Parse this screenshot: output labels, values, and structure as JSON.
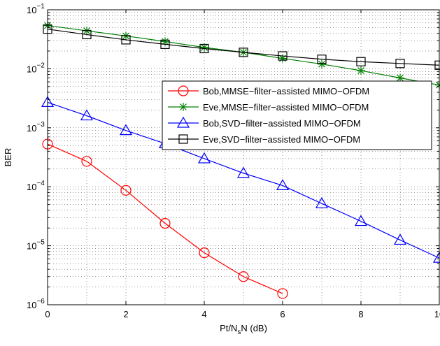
{
  "chart_data": {
    "type": "line",
    "title": "",
    "xlabel": {
      "main": "Pt/N",
      "sub": "s",
      "tail": "N (dB)"
    },
    "ylabel": "BER",
    "xlim": [
      0,
      10
    ],
    "ylim": [
      1e-06,
      0.1
    ],
    "yscale": "log",
    "grid": true,
    "legend_position": "right",
    "x_ticks": [
      "0",
      "2",
      "4",
      "6",
      "8",
      "10"
    ],
    "x_tick_values": [
      0,
      2,
      4,
      6,
      8,
      10
    ],
    "y_ticks": [
      {
        "base": "10",
        "exp": "−6",
        "value": 1e-06
      },
      {
        "base": "10",
        "exp": "−5",
        "value": 1e-05
      },
      {
        "base": "10",
        "exp": "−4",
        "value": 0.0001
      },
      {
        "base": "10",
        "exp": "−3",
        "value": 0.001
      },
      {
        "base": "10",
        "exp": "−2",
        "value": 0.01
      },
      {
        "base": "10",
        "exp": "−1",
        "value": 0.1
      }
    ],
    "series": [
      {
        "name": "Bob,MMSE−filter−assisted MIMO−OFDM",
        "color": "#ff0000",
        "marker": "circle",
        "x": [
          0,
          1,
          2,
          3,
          4,
          5,
          6
        ],
        "y": [
          0.00053,
          0.00027,
          8.7e-05,
          2.4e-05,
          7.6e-06,
          3e-06,
          1.55e-06
        ]
      },
      {
        "name": "Eve,MMSE−filter−assisted MIMO−OFDM",
        "color": "#008000",
        "marker": "star",
        "x": [
          0,
          1,
          2,
          3,
          4,
          5,
          6,
          7,
          8,
          9,
          10
        ],
        "y": [
          0.054,
          0.044,
          0.036,
          0.029,
          0.023,
          0.019,
          0.015,
          0.012,
          0.0093,
          0.007,
          0.0053
        ]
      },
      {
        "name": "Bob,SVD−filter−assisted MIMO−OFDM",
        "color": "#0000ff",
        "marker": "triangle",
        "x": [
          0,
          1,
          2,
          3,
          4,
          5,
          6,
          7,
          8,
          9,
          10
        ],
        "y": [
          0.0027,
          0.0016,
          0.0009,
          0.00054,
          0.0003,
          0.00017,
          0.000105,
          5.2e-05,
          2.6e-05,
          1.25e-05,
          6.2e-06
        ]
      },
      {
        "name": "Eve,SVD−filter−assisted MIMO−OFDM",
        "color": "#000000",
        "marker": "square",
        "x": [
          0,
          1,
          2,
          3,
          4,
          5,
          6,
          7,
          8,
          9,
          10
        ],
        "y": [
          0.047,
          0.038,
          0.031,
          0.026,
          0.022,
          0.019,
          0.0165,
          0.0145,
          0.0132,
          0.0123,
          0.0115
        ]
      }
    ]
  }
}
